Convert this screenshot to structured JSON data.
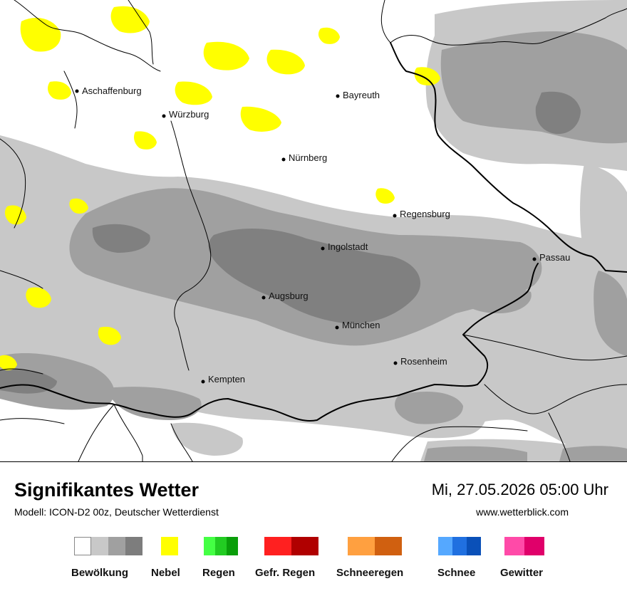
{
  "map": {
    "cities": [
      {
        "name": "Aschaffenburg"
      },
      {
        "name": "Würzburg"
      },
      {
        "name": "Bayreuth"
      },
      {
        "name": "Nürnberg"
      },
      {
        "name": "Regensburg"
      },
      {
        "name": "Ingolstadt"
      },
      {
        "name": "Passau"
      },
      {
        "name": "Augsburg"
      },
      {
        "name": "München"
      },
      {
        "name": "Rosenheim"
      },
      {
        "name": "Kempten"
      }
    ]
  },
  "footer": {
    "title": "Signifikantes Wetter",
    "subtitle": "Modell: ICON-D2 00z, Deutscher Wetterdienst",
    "datetime": "Mi, 27.05.2026 05:00 Uhr",
    "website": "www.wetterblick.com"
  },
  "legend": [
    {
      "label": "Bewölkung",
      "colors": [
        "#ffffff",
        "#c8c8c8",
        "#a0a0a0",
        "#7d7d7d"
      ]
    },
    {
      "label": "Nebel",
      "colors": [
        "#ffff00"
      ]
    },
    {
      "label": "Regen",
      "colors": [
        "#44ff44",
        "#22cc22",
        "#0a9e0a"
      ]
    },
    {
      "label": "Gefr. Regen",
      "colors": [
        "#ff2020",
        "#b00000"
      ]
    },
    {
      "label": "Schneeregen",
      "colors": [
        "#ffa040",
        "#d06010"
      ]
    },
    {
      "label": "Schnee",
      "colors": [
        "#55a8ff",
        "#2070e0",
        "#0a50b8"
      ]
    },
    {
      "label": "Gewitter",
      "colors": [
        "#ff4aa8",
        "#e0006a"
      ]
    }
  ]
}
